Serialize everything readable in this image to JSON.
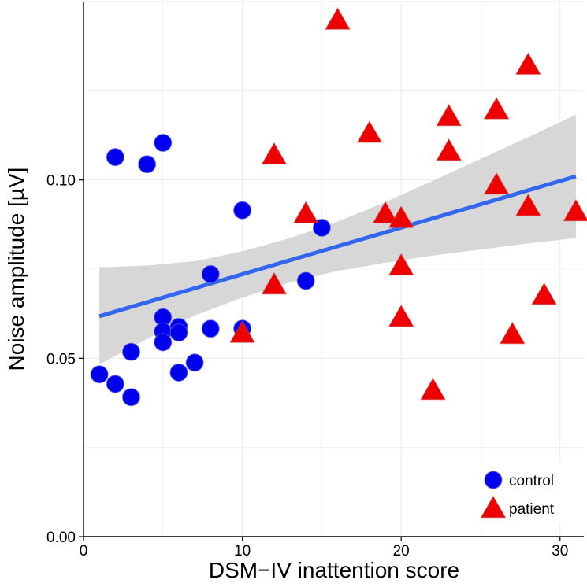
{
  "chart_data": {
    "type": "scatter",
    "xlabel": "DSM−IV inattention score",
    "ylabel": "Noise amplitude [µV]",
    "xlim": [
      0,
      31.5
    ],
    "ylim": [
      0,
      0.15
    ],
    "x_ticks": [
      {
        "value": 0,
        "label": "0"
      },
      {
        "value": 10,
        "label": "10"
      },
      {
        "value": 20,
        "label": "20"
      },
      {
        "value": 30,
        "label": "30"
      }
    ],
    "y_ticks": [
      {
        "value": 0,
        "label": "0.00"
      },
      {
        "value": 0.05,
        "label": "0.05"
      },
      {
        "value": 0.1,
        "label": "0.10"
      }
    ],
    "series": [
      {
        "name": "control",
        "marker": "circle",
        "color": "#0000ee",
        "points": [
          [
            1,
            0.0455
          ],
          [
            2,
            0.0428
          ],
          [
            3,
            0.0391
          ],
          [
            3,
            0.0518
          ],
          [
            2,
            0.1064
          ],
          [
            4,
            0.1044
          ],
          [
            5,
            0.1104
          ],
          [
            5,
            0.0615
          ],
          [
            5,
            0.0575
          ],
          [
            5,
            0.0545
          ],
          [
            6,
            0.0588
          ],
          [
            6,
            0.0572
          ],
          [
            6,
            0.046
          ],
          [
            7,
            0.0488
          ],
          [
            8,
            0.0736
          ],
          [
            8,
            0.0583
          ],
          [
            10,
            0.0915
          ],
          [
            10,
            0.0583
          ],
          [
            14,
            0.0717
          ],
          [
            15,
            0.0866
          ]
        ]
      },
      {
        "name": "patient",
        "marker": "triangle",
        "color": "#ee0000",
        "points": [
          [
            10,
            0.0568
          ],
          [
            12,
            0.1068
          ],
          [
            12,
            0.0704
          ],
          [
            14,
            0.0903
          ],
          [
            16,
            0.1446
          ],
          [
            18,
            0.1129
          ],
          [
            19,
            0.0903
          ],
          [
            20,
            0.089
          ],
          [
            20,
            0.0757
          ],
          [
            20,
            0.0613
          ],
          [
            22,
            0.0408
          ],
          [
            23,
            0.1176
          ],
          [
            23,
            0.1079
          ],
          [
            26,
            0.1195
          ],
          [
            26,
            0.0984
          ],
          [
            27,
            0.0565
          ],
          [
            28,
            0.132
          ],
          [
            28,
            0.0924
          ],
          [
            29,
            0.0675
          ],
          [
            31,
            0.0909
          ]
        ]
      }
    ],
    "fit": {
      "type": "linear",
      "color": "#3366ee",
      "band_color": "#d3d3d3",
      "points": [
        {
          "x": 1,
          "y": 0.0618,
          "lo": 0.0483,
          "hi": 0.0755
        },
        {
          "x": 4,
          "y": 0.0657,
          "lo": 0.0554,
          "hi": 0.076
        },
        {
          "x": 7,
          "y": 0.0696,
          "lo": 0.062,
          "hi": 0.0772
        },
        {
          "x": 10,
          "y": 0.0735,
          "lo": 0.067,
          "hi": 0.08
        },
        {
          "x": 13,
          "y": 0.0775,
          "lo": 0.0713,
          "hi": 0.0837
        },
        {
          "x": 16,
          "y": 0.0814,
          "lo": 0.0745,
          "hi": 0.0883
        },
        {
          "x": 19,
          "y": 0.0853,
          "lo": 0.0768,
          "hi": 0.0938
        },
        {
          "x": 22,
          "y": 0.0893,
          "lo": 0.0788,
          "hi": 0.0998
        },
        {
          "x": 25,
          "y": 0.0932,
          "lo": 0.0805,
          "hi": 0.1059
        },
        {
          "x": 28,
          "y": 0.0971,
          "lo": 0.0822,
          "hi": 0.112
        },
        {
          "x": 31,
          "y": 0.101,
          "lo": 0.0837,
          "hi": 0.1183
        }
      ]
    },
    "legend": {
      "position": "bottom-right",
      "entries": [
        {
          "label": "control",
          "marker": "circle",
          "color": "#0000ee"
        },
        {
          "label": "patient",
          "marker": "triangle",
          "color": "#ee0000"
        }
      ]
    },
    "grid": true
  }
}
